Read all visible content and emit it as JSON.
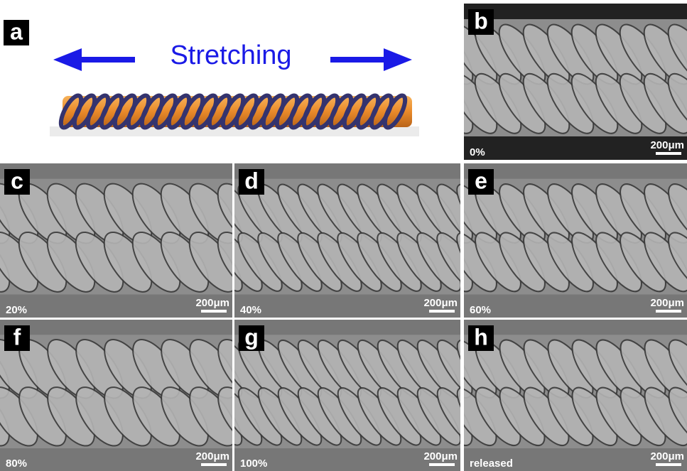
{
  "panels": [
    {
      "label": "a",
      "title": "Stretching"
    },
    {
      "label": "b",
      "strain": "0%",
      "scale_bar": "200μm"
    },
    {
      "label": "c",
      "strain": "20%",
      "scale_bar": "200μm"
    },
    {
      "label": "d",
      "strain": "40%",
      "scale_bar": "200μm"
    },
    {
      "label": "e",
      "strain": "60%",
      "scale_bar": "200μm"
    },
    {
      "label": "f",
      "strain": "80%",
      "scale_bar": "200μm"
    },
    {
      "label": "g",
      "strain": "100%",
      "scale_bar": "200μm"
    },
    {
      "label": "h",
      "strain": "released",
      "scale_bar": "200μm"
    }
  ]
}
